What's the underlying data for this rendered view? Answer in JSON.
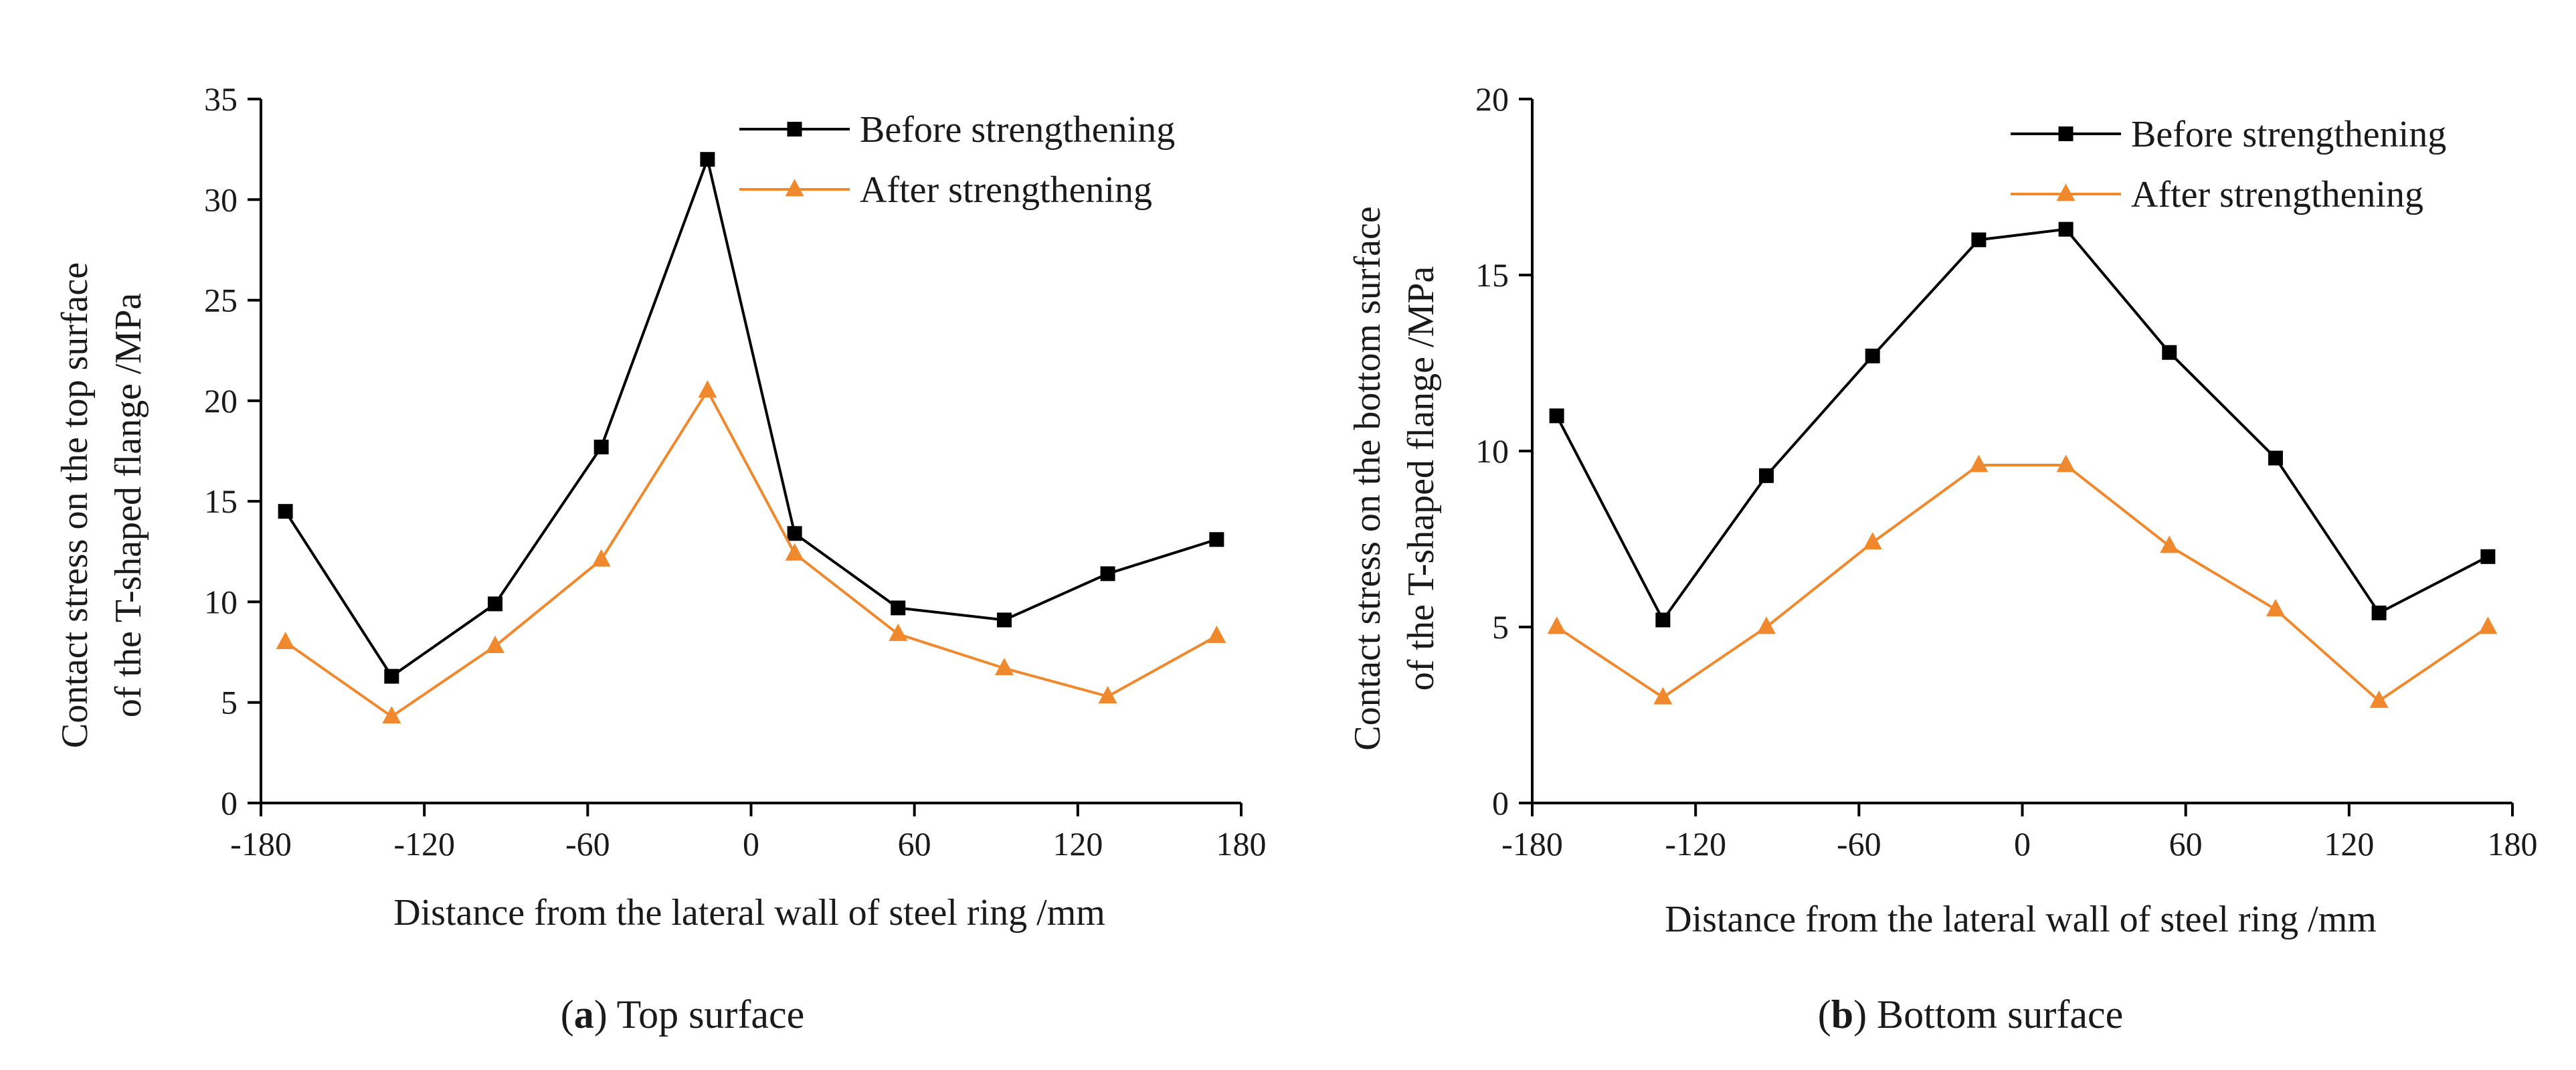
{
  "colors": {
    "before": "#000000",
    "after": "#f0892e",
    "axis": "#000000",
    "text": "#1a1a1a"
  },
  "chart_data": [
    {
      "type": "line",
      "caption_letter": "a",
      "caption_text": "Top surface",
      "xlabel": "Distance from the lateral wall of steel ring /mm",
      "ylabel_line1": "Contact stress on the top surface",
      "ylabel_line2": "of the T-shaped flange /MPa",
      "xlim": [
        -180,
        180
      ],
      "ylim": [
        0,
        35
      ],
      "xticks": [
        -180,
        -120,
        -60,
        0,
        60,
        120,
        180
      ],
      "yticks": [
        0,
        5,
        10,
        15,
        20,
        25,
        30,
        35
      ],
      "x": [
        -171,
        -132,
        -94,
        -55,
        -16,
        16,
        54,
        93,
        131,
        171
      ],
      "series": [
        {
          "name": "Before strengthening",
          "marker": "square",
          "color": "#000000",
          "values": [
            14.5,
            6.3,
            9.9,
            17.7,
            32.0,
            13.4,
            9.7,
            9.1,
            11.4,
            13.1
          ]
        },
        {
          "name": "After strengthening",
          "marker": "triangle",
          "color": "#f0892e",
          "values": [
            8.0,
            4.3,
            7.8,
            12.1,
            20.5,
            12.4,
            8.4,
            6.7,
            5.3,
            8.3
          ]
        }
      ],
      "legend_position": "top-right",
      "grid": false
    },
    {
      "type": "line",
      "caption_letter": "b",
      "caption_text": "Bottom surface",
      "xlabel": "Distance from the lateral wall of  steel ring /mm",
      "ylabel_line1": "Contact stress on the bottom surface",
      "ylabel_line2": "of the T-shaped flange /MPa",
      "xlim": [
        -180,
        180
      ],
      "ylim": [
        0,
        20
      ],
      "xticks": [
        -180,
        -120,
        -60,
        0,
        60,
        120,
        180
      ],
      "yticks": [
        0,
        5,
        10,
        15,
        20
      ],
      "x": [
        -171,
        -132,
        -94,
        -55,
        -16,
        16,
        54,
        93,
        131,
        171
      ],
      "series": [
        {
          "name": "Before strengthening",
          "marker": "square",
          "color": "#000000",
          "values": [
            11.0,
            5.2,
            9.3,
            12.7,
            16.0,
            16.3,
            12.8,
            9.8,
            5.4,
            7.0
          ]
        },
        {
          "name": "After strengthening",
          "marker": "triangle",
          "color": "#f0892e",
          "values": [
            5.0,
            3.0,
            5.0,
            7.4,
            9.6,
            9.6,
            7.3,
            5.5,
            2.9,
            5.0
          ]
        }
      ],
      "legend_position": "top-right",
      "grid": false
    }
  ]
}
